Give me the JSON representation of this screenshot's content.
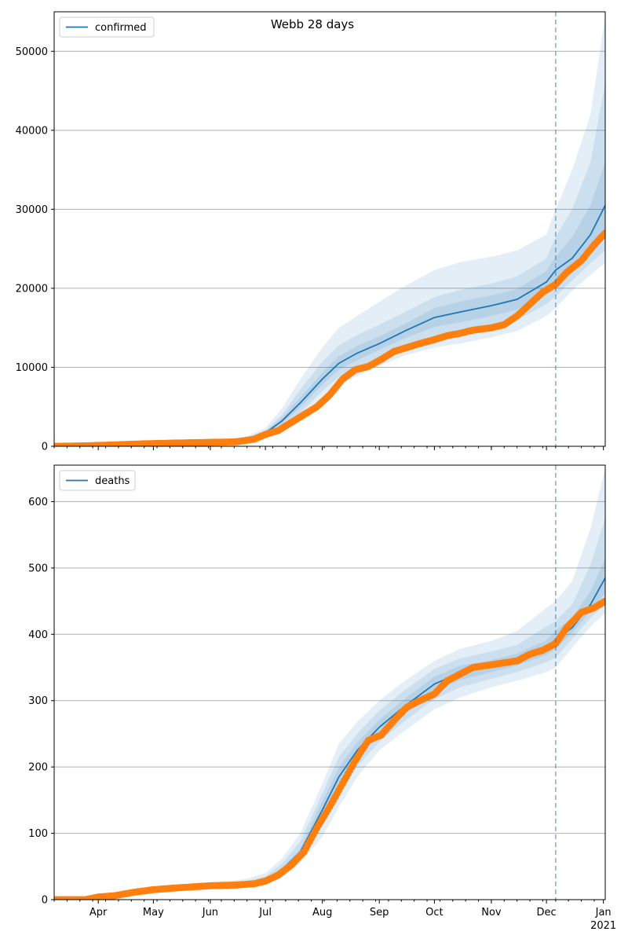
{
  "figure_title": "Webb 28 days",
  "colors": {
    "model_line": "#1f77b4",
    "observed": "#ff7f0e",
    "band": "#1f77b4",
    "grid": "#b0b0b0",
    "forecast_marker": "#1f77b4"
  },
  "x_axis": {
    "month_labels": [
      "Apr",
      "May",
      "Jun",
      "Jul",
      "Aug",
      "Sep",
      "Oct",
      "Nov",
      "Dec",
      "Jan"
    ],
    "year_label": "2021"
  },
  "chart_data": [
    {
      "type": "line",
      "legend": "confirmed",
      "legend_position": "upper-left",
      "grid": "horizontal",
      "x_domain": [
        "2020-03-08",
        "2021-01-02"
      ],
      "forecast_start": "2020-12-06",
      "ylim": [
        0,
        55000
      ],
      "y_ticks": [
        "0",
        "10000",
        "20000",
        "30000",
        "40000",
        "50000"
      ],
      "y_tick_values": [
        0,
        10000,
        20000,
        30000,
        40000,
        50000
      ],
      "model": {
        "dates": [
          "2020-03-08",
          "2020-04-01",
          "2020-05-01",
          "2020-06-01",
          "2020-06-20",
          "2020-07-01",
          "2020-07-10",
          "2020-07-20",
          "2020-08-01",
          "2020-08-10",
          "2020-08-20",
          "2020-09-01",
          "2020-09-15",
          "2020-10-01",
          "2020-10-15",
          "2020-11-01",
          "2020-11-15",
          "2020-12-01",
          "2020-12-06",
          "2020-12-15",
          "2020-12-25",
          "2021-01-02"
        ],
        "median": [
          0,
          150,
          350,
          550,
          900,
          1700,
          3200,
          5500,
          8500,
          10500,
          11800,
          13000,
          14600,
          16300,
          17000,
          17800,
          18600,
          20800,
          22300,
          23800,
          26800,
          30500
        ],
        "bands": [
          {
            "level": "95%",
            "lower": [
              0,
              130,
              300,
              480,
              700,
              1300,
              2100,
              3500,
              6000,
              7800,
              8900,
              10200,
              11500,
              12500,
              13000,
              13800,
              14600,
              16500,
              17500,
              19700,
              21700,
              23200
            ],
            "upper": [
              0,
              170,
              420,
              650,
              1200,
              2300,
              4800,
              8500,
              12500,
              15000,
              16500,
              18300,
              20300,
              22300,
              23300,
              24000,
              24800,
              26800,
              30000,
              35000,
              42000,
              54500
            ]
          },
          {
            "level": "80%",
            "lower": [
              0,
              140,
              320,
              510,
              800,
              1450,
              2500,
              4200,
              7000,
              8800,
              9900,
              11200,
              12600,
              13800,
              14400,
              15200,
              16000,
              18000,
              19000,
              21000,
              23200,
              24800
            ],
            "upper": [
              0,
              160,
              380,
              600,
              1050,
              2000,
              4000,
              7200,
              10700,
              12800,
              14100,
              15400,
              17000,
              18900,
              19800,
              20600,
              21500,
              23800,
              26500,
              30000,
              36000,
              46000
            ]
          },
          {
            "level": "50%",
            "lower": [
              0,
              145,
              335,
              530,
              860,
              1600,
              2900,
              4900,
              7800,
              9700,
              10900,
              12200,
              13700,
              15100,
              15700,
              16500,
              17300,
              19400,
              20700,
              22500,
              24900,
              27000
            ],
            "upper": [
              0,
              155,
              365,
              570,
              950,
              1850,
              3600,
              6200,
              9300,
              11400,
              12700,
              13900,
              15500,
              17500,
              18300,
              19100,
              19900,
              22200,
              24000,
              26500,
              30500,
              36000
            ]
          }
        ]
      },
      "observed": {
        "dates": [
          "2020-03-08",
          "2020-03-25",
          "2020-04-10",
          "2020-04-20",
          "2020-05-01",
          "2020-05-15",
          "2020-06-01",
          "2020-06-15",
          "2020-06-25",
          "2020-07-01",
          "2020-07-08",
          "2020-07-15",
          "2020-07-22",
          "2020-07-29",
          "2020-08-05",
          "2020-08-12",
          "2020-08-19",
          "2020-08-26",
          "2020-09-02",
          "2020-09-09",
          "2020-09-16",
          "2020-09-23",
          "2020-10-01",
          "2020-10-08",
          "2020-10-15",
          "2020-10-22",
          "2020-11-01",
          "2020-11-08",
          "2020-11-15",
          "2020-11-22",
          "2020-11-29",
          "2020-12-06",
          "2020-12-12",
          "2020-12-20",
          "2020-12-27",
          "2021-01-02"
        ],
        "values": [
          0,
          60,
          180,
          270,
          350,
          420,
          500,
          560,
          900,
          1500,
          2000,
          3000,
          4000,
          5000,
          6500,
          8500,
          9700,
          10100,
          11000,
          12000,
          12500,
          13000,
          13500,
          14000,
          14300,
          14700,
          15000,
          15400,
          16500,
          18000,
          19500,
          20500,
          22000,
          23500,
          25500,
          27000
        ]
      }
    },
    {
      "type": "line",
      "legend": "deaths",
      "legend_position": "upper-left",
      "grid": "horizontal",
      "x_domain": [
        "2020-03-08",
        "2021-01-02"
      ],
      "forecast_start": "2020-12-06",
      "ylim": [
        0,
        655
      ],
      "y_ticks": [
        "0",
        "100",
        "200",
        "300",
        "400",
        "500",
        "600"
      ],
      "y_tick_values": [
        0,
        100,
        200,
        300,
        400,
        500,
        600
      ],
      "model": {
        "dates": [
          "2020-03-08",
          "2020-04-01",
          "2020-04-15",
          "2020-05-01",
          "2020-06-01",
          "2020-06-20",
          "2020-07-01",
          "2020-07-10",
          "2020-07-20",
          "2020-08-01",
          "2020-08-10",
          "2020-08-20",
          "2020-09-01",
          "2020-09-15",
          "2020-10-01",
          "2020-10-15",
          "2020-11-01",
          "2020-11-15",
          "2020-12-01",
          "2020-12-06",
          "2020-12-15",
          "2020-12-25",
          "2021-01-02"
        ],
        "median": [
          0,
          4,
          11,
          16,
          21,
          24,
          30,
          45,
          72,
          135,
          185,
          225,
          260,
          292,
          325,
          342,
          352,
          362,
          380,
          392,
          410,
          445,
          485
        ],
        "bands": [
          {
            "level": "95%",
            "lower": [
              0,
              3,
              9,
              13,
              17,
              19,
              24,
              34,
              55,
              95,
              140,
              185,
              225,
              255,
              287,
              305,
              320,
              330,
              343,
              350,
              380,
              412,
              432
            ],
            "upper": [
              0,
              5,
              13,
              19,
              25,
              31,
              40,
              62,
              100,
              175,
              235,
              268,
              300,
              330,
              360,
              378,
              390,
              405,
              440,
              450,
              480,
              560,
              650
            ]
          },
          {
            "level": "80%",
            "lower": [
              0,
              3.5,
              10,
              14,
              18.5,
              21,
              27,
              39,
              62,
              110,
              158,
              201,
              238,
              270,
              302,
              320,
              333,
              343,
              358,
              365,
              393,
              425,
              446
            ],
            "upper": [
              0,
              4.5,
              12,
              18,
              23.5,
              28,
              35,
              54,
              88,
              160,
              215,
              250,
              285,
              316,
              348,
              364,
              374,
              384,
              412,
              420,
              445,
              505,
              575
            ]
          },
          {
            "level": "50%",
            "lower": [
              0,
              3.8,
              10.5,
              15,
              19.8,
              22.5,
              28.5,
              42,
              67,
              122,
              171,
              213,
              249,
              281,
              314,
              331,
              343,
              353,
              369,
              378,
              402,
              435,
              462
            ],
            "upper": [
              0,
              4.2,
              11.5,
              17,
              22.2,
              25.5,
              31.5,
              48,
              77,
              148,
              199,
              237,
              271,
              303,
              336,
              353,
              361,
              371,
              391,
              406,
              425,
              465,
              515
            ]
          }
        ]
      },
      "observed": {
        "dates": [
          "2020-03-08",
          "2020-03-25",
          "2020-04-01",
          "2020-04-10",
          "2020-04-20",
          "2020-05-01",
          "2020-05-15",
          "2020-06-01",
          "2020-06-15",
          "2020-06-25",
          "2020-07-01",
          "2020-07-08",
          "2020-07-15",
          "2020-07-22",
          "2020-07-29",
          "2020-08-05",
          "2020-08-12",
          "2020-08-19",
          "2020-08-26",
          "2020-09-02",
          "2020-09-09",
          "2020-09-16",
          "2020-09-23",
          "2020-10-01",
          "2020-10-08",
          "2020-10-15",
          "2020-10-22",
          "2020-11-01",
          "2020-11-08",
          "2020-11-15",
          "2020-11-22",
          "2020-11-29",
          "2020-12-06",
          "2020-12-12",
          "2020-12-20",
          "2020-12-27",
          "2021-01-02"
        ],
        "values": [
          0,
          0,
          4,
          6,
          11,
          15,
          18,
          21,
          22,
          24,
          28,
          37,
          52,
          72,
          108,
          140,
          175,
          210,
          240,
          248,
          270,
          290,
          300,
          310,
          330,
          340,
          350,
          354,
          357,
          360,
          370,
          376,
          386,
          410,
          433,
          440,
          450
        ]
      }
    }
  ]
}
